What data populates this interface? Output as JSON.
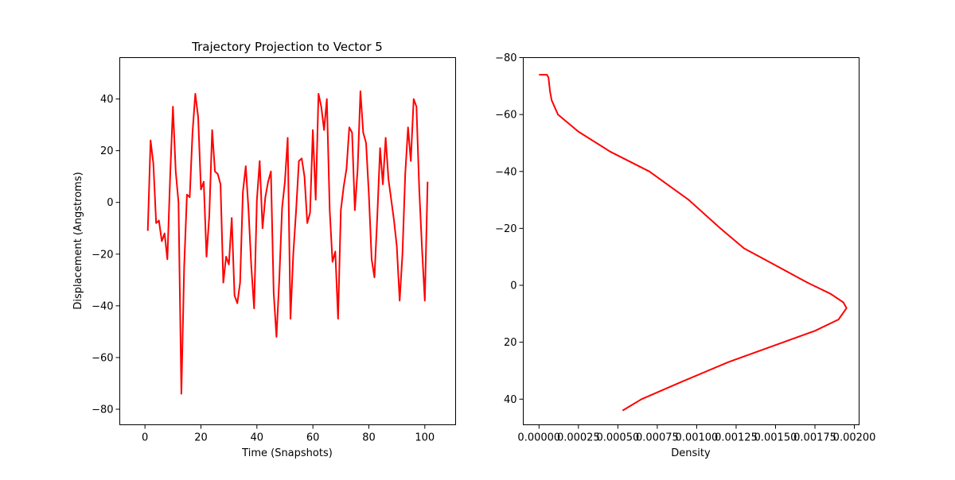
{
  "chart_data": [
    {
      "type": "line",
      "title": "Trajectory Projection to Vector 5",
      "xlabel": "Time (Snapshots)",
      "ylabel": "Displacement (Angstroms)",
      "xlim": [
        -9,
        111
      ],
      "ylim": [
        -86,
        56
      ],
      "xticks": [
        0,
        20,
        40,
        60,
        80,
        100
      ],
      "yticks": [
        -80,
        -60,
        -40,
        -20,
        0,
        20,
        40
      ],
      "color": "#ff0000",
      "x": [
        1,
        2,
        3,
        4,
        5,
        6,
        7,
        8,
        9,
        10,
        11,
        12,
        13,
        14,
        15,
        16,
        17,
        18,
        19,
        20,
        21,
        22,
        23,
        24,
        25,
        26,
        27,
        28,
        29,
        30,
        31,
        32,
        33,
        34,
        35,
        36,
        37,
        38,
        39,
        40,
        41,
        42,
        43,
        44,
        45,
        46,
        47,
        48,
        49,
        50,
        51,
        52,
        53,
        54,
        55,
        56,
        57,
        58,
        59,
        60,
        61,
        62,
        63,
        64,
        65,
        66,
        67,
        68,
        69,
        70,
        71,
        72,
        73,
        74,
        75,
        76,
        77,
        78,
        79,
        80,
        81,
        82,
        83,
        84,
        85,
        86,
        87,
        88,
        89,
        90,
        91,
        92,
        93,
        94,
        95,
        96,
        97,
        98,
        99,
        100,
        101
      ],
      "y": [
        -11,
        24,
        15,
        -8,
        -7,
        -15,
        -12,
        -22,
        10,
        37,
        12,
        0,
        -74,
        -25,
        3,
        2,
        27,
        42,
        33,
        5,
        8,
        -21,
        -5,
        28,
        12,
        11,
        7,
        -31,
        -21,
        -24,
        -6,
        -36,
        -39,
        -31,
        4,
        14,
        -3,
        -25,
        -41,
        1,
        16,
        -10,
        2,
        8,
        12,
        -35,
        -52,
        -30,
        -2,
        8,
        25,
        -45,
        -20,
        -3,
        16,
        17,
        10,
        -8,
        -4,
        28,
        1,
        42,
        37,
        28,
        40,
        -3,
        -23,
        -19,
        -45,
        -3,
        6,
        13,
        29,
        27,
        -3,
        13,
        43,
        27,
        23,
        3,
        -22,
        -29,
        -6,
        21,
        7,
        25,
        9,
        1,
        -7,
        -17,
        -38,
        -20,
        11,
        29,
        16,
        40,
        37,
        5,
        -18,
        -38,
        8
      ]
    },
    {
      "type": "line",
      "title": "",
      "xlabel": "Density",
      "ylabel": "",
      "xlim": [
        -0.0001,
        0.00203
      ],
      "ylim": [
        49,
        -80
      ],
      "xticks": [
        "0.00000",
        "0.00025",
        "0.00050",
        "0.00075",
        "0.00100",
        "0.00125",
        "0.00150",
        "0.00175",
        "0.00200"
      ],
      "yticks": [
        -80,
        -60,
        -40,
        -20,
        0,
        20,
        40
      ],
      "color": "#ff0000",
      "x": [
        0.0,
        5e-05,
        6e-05,
        7e-05,
        8e-05,
        0.00012,
        0.00025,
        0.00045,
        0.0007,
        0.00095,
        0.00115,
        0.0013,
        0.0015,
        0.0017,
        0.00185,
        0.00193,
        0.00195,
        0.0019,
        0.00175,
        0.0015,
        0.0012,
        0.0009,
        0.00065,
        0.00053
      ],
      "y": [
        -74,
        -74,
        -73,
        -68,
        -65,
        -60,
        -54,
        -47,
        -40,
        -30,
        -20,
        -13,
        -7,
        -1,
        3,
        6,
        8,
        12,
        16,
        21,
        27,
        34,
        40,
        44
      ]
    }
  ]
}
